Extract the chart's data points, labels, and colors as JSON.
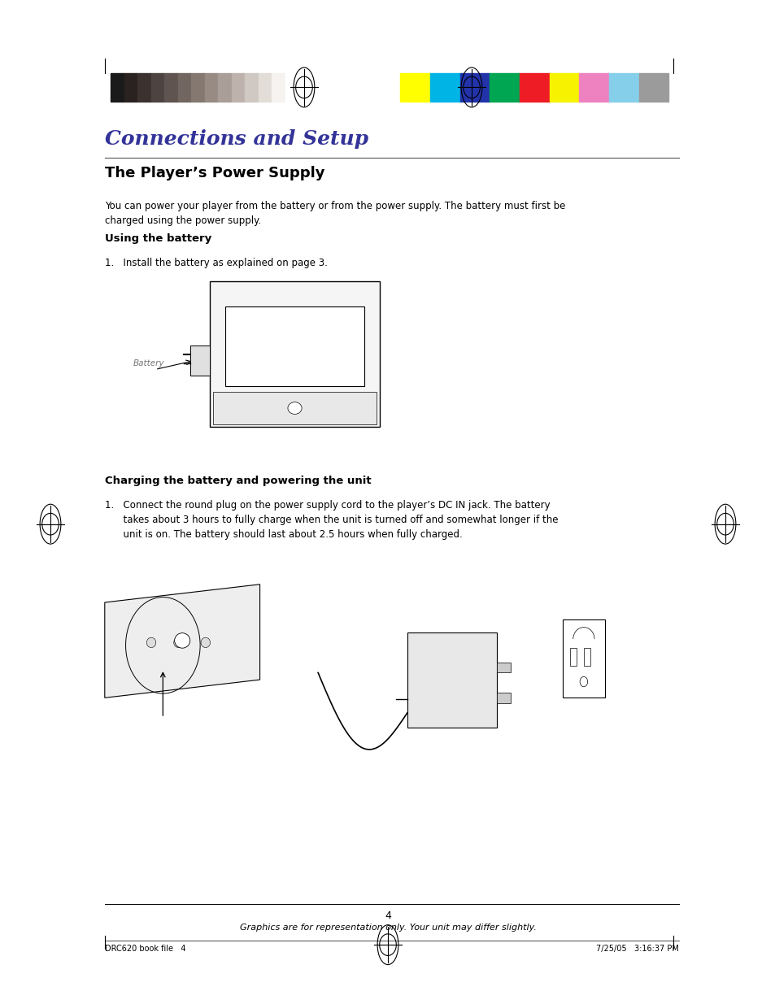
{
  "page_bg": "#ffffff",
  "title": "Connections and Setup",
  "section1_title": "The Player’s Power Supply",
  "section1_body": "You can power your player from the battery or from the power supply. The battery must first be\ncharged using the power supply.",
  "subsection1_title": "Using the battery",
  "step1_text": "1.   Install the battery as explained on page 3.",
  "battery_label": "Battery",
  "subsection2_title": "Charging the battery and powering the unit",
  "step2_text": "1.   Connect the round plug on the power supply cord to the player’s DC IN jack. The battery\n      takes about 3 hours to fully charge when the unit is turned off and somewhat longer if the\n      unit is on. The battery should last about 2.5 hours when fully charged.",
  "footer_page_num": "4",
  "footer_note": "Graphics are for representation only. Your unit may differ slightly.",
  "footer_left": "DRC620 book file   4",
  "footer_right": "7/25/05   3:16:37 PM",
  "grayscale_colors": [
    "#1a1a1a",
    "#2a2221",
    "#3b3230",
    "#4d4340",
    "#5f5450",
    "#716660",
    "#847870",
    "#978b84",
    "#aa9f98",
    "#bdb3ac",
    "#d0c8c2",
    "#e3ddd8",
    "#f5f2ef",
    "#ffffff"
  ],
  "color_bars": [
    "#ffff00",
    "#00b4e6",
    "#2233aa",
    "#00a651",
    "#ee1c25",
    "#f7f200",
    "#ee82c0",
    "#86cfea",
    "#9b9b9b"
  ]
}
